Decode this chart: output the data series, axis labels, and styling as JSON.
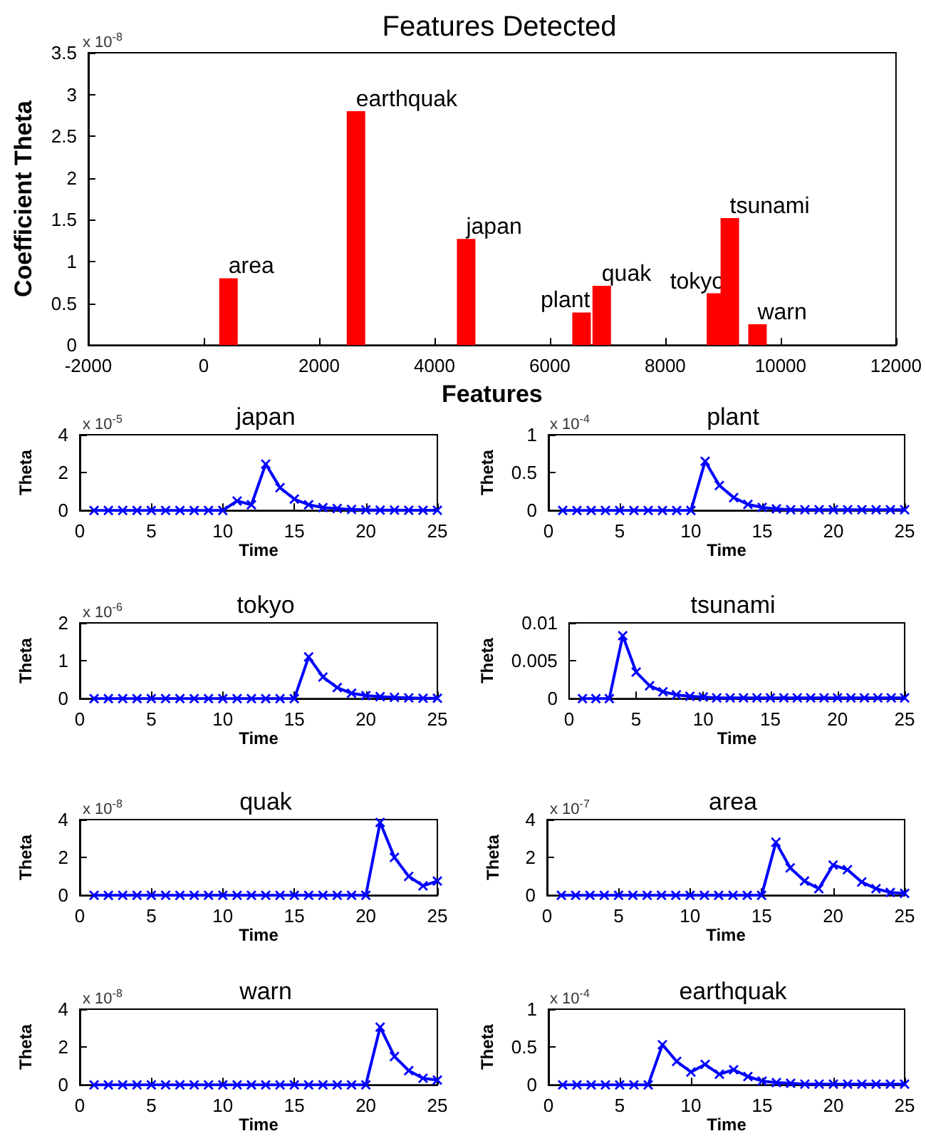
{
  "chart_data": [
    {
      "type": "bar",
      "title": "Features Detected",
      "xlabel": "Features",
      "ylabel": "Coefficient Theta",
      "x": [
        430,
        2640,
        4550,
        6550,
        6900,
        8880,
        9120,
        9600
      ],
      "values": [
        0.8,
        2.8,
        1.27,
        0.39,
        0.71,
        0.62,
        1.52,
        0.25
      ],
      "color": "#ff0000",
      "xlim": [
        -2000,
        12000
      ],
      "xticks": [
        -2000,
        0,
        2000,
        4000,
        6000,
        8000,
        10000,
        12000
      ],
      "ylim": [
        0,
        3.5
      ],
      "yticks": [
        0,
        0.5,
        1,
        1.5,
        2,
        2.5,
        3,
        3.5
      ],
      "annotations": [
        "x 10$^{-8}$",
        {
          "text": "area",
          "x": 430,
          "y": 0.8
        },
        {
          "text": "earthquak",
          "x": 2640,
          "y": 2.8
        },
        {
          "text": "japan",
          "x": 4550,
          "y": 1.27
        },
        {
          "text": "plant",
          "x": 6550,
          "y": 0.39
        },
        {
          "text": "quak",
          "x": 6900,
          "y": 0.71
        },
        {
          "text": "tokyo",
          "x": 8880,
          "y": 0.62
        },
        {
          "text": "tsunami",
          "x": 9120,
          "y": 1.52
        },
        {
          "text": "warn",
          "x": 9600,
          "y": 0.25
        }
      ]
    },
    {
      "type": "line",
      "title": "japan",
      "xlabel": "Time",
      "ylabel": "Theta",
      "marker": "cross",
      "color": "#0000ff",
      "x": [
        1,
        2,
        3,
        4,
        5,
        6,
        7,
        8,
        9,
        10,
        11,
        12,
        13,
        14,
        15,
        16,
        17,
        18,
        19,
        20,
        21,
        22,
        23,
        24,
        25
      ],
      "values": [
        0,
        0,
        0,
        0,
        0,
        0,
        0,
        0,
        0,
        0,
        0.5,
        0.3,
        2.45,
        1.2,
        0.6,
        0.3,
        0.15,
        0.1,
        0.05,
        0.03,
        0.02,
        0.02,
        0.01,
        0.01,
        0.01
      ],
      "xlim": [
        0,
        25
      ],
      "xticks": [
        0,
        5,
        10,
        15,
        20,
        25
      ],
      "ylim": [
        0,
        4
      ],
      "yticks": [
        0,
        2,
        4
      ],
      "annotations": [
        "x 10$^{-5}$"
      ]
    },
    {
      "type": "line",
      "title": "plant",
      "xlabel": "Time",
      "ylabel": "Theta",
      "marker": "cross",
      "color": "#0000ff",
      "x": [
        1,
        2,
        3,
        4,
        5,
        6,
        7,
        8,
        9,
        10,
        11,
        12,
        13,
        14,
        15,
        16,
        17,
        18,
        19,
        20,
        21,
        22,
        23,
        24,
        25
      ],
      "values": [
        0,
        0,
        0,
        0,
        0,
        0,
        0,
        0,
        0,
        0,
        0.65,
        0.33,
        0.17,
        0.08,
        0.04,
        0.02,
        0.01,
        0.01,
        0.01,
        0.01,
        0.01,
        0.01,
        0.01,
        0.01,
        0.01
      ],
      "xlim": [
        0,
        25
      ],
      "xticks": [
        0,
        5,
        10,
        15,
        20,
        25
      ],
      "ylim": [
        0,
        1
      ],
      "yticks": [
        0,
        0.5,
        1
      ],
      "annotations": [
        "x 10$^{-4}$"
      ]
    },
    {
      "type": "line",
      "title": "tokyo",
      "xlabel": "Time",
      "ylabel": "Theta",
      "marker": "cross",
      "color": "#0000ff",
      "x": [
        1,
        2,
        3,
        4,
        5,
        6,
        7,
        8,
        9,
        10,
        11,
        12,
        13,
        14,
        15,
        16,
        17,
        18,
        19,
        20,
        21,
        22,
        23,
        24,
        25
      ],
      "values": [
        0,
        0,
        0,
        0,
        0,
        0,
        0,
        0,
        0,
        0,
        0,
        0,
        0,
        0,
        0,
        1.1,
        0.57,
        0.29,
        0.14,
        0.08,
        0.05,
        0.03,
        0.02,
        0.01,
        0.01
      ],
      "xlim": [
        0,
        25
      ],
      "xticks": [
        0,
        5,
        10,
        15,
        20,
        25
      ],
      "ylim": [
        0,
        2
      ],
      "yticks": [
        0,
        1,
        2
      ],
      "annotations": [
        "x 10$^{-6}$"
      ]
    },
    {
      "type": "line",
      "title": "tsunami",
      "xlabel": "Time",
      "ylabel": "Theta",
      "marker": "cross",
      "color": "#0000ff",
      "x": [
        1,
        2,
        3,
        4,
        5,
        6,
        7,
        8,
        9,
        10,
        11,
        12,
        13,
        14,
        15,
        16,
        17,
        18,
        19,
        20,
        21,
        22,
        23,
        24,
        25
      ],
      "values": [
        0,
        0,
        0,
        0.0083,
        0.0035,
        0.0017,
        0.0009,
        0.0005,
        0.0003,
        0.0002,
        0.0001,
        0.0001,
        0.0001,
        0.0001,
        0.0001,
        0.0001,
        0.0001,
        0.0001,
        0.0001,
        0.0001,
        0.0001,
        0.0001,
        0.0001,
        0.0001,
        0.0001
      ],
      "xlim": [
        0,
        25
      ],
      "xticks": [
        0,
        5,
        10,
        15,
        20,
        25
      ],
      "ylim": [
        0,
        0.01
      ],
      "yticks": [
        0,
        0.005,
        0.01
      ]
    },
    {
      "type": "line",
      "title": "quak",
      "xlabel": "Time",
      "ylabel": "Theta",
      "marker": "cross",
      "color": "#0000ff",
      "x": [
        1,
        2,
        3,
        4,
        5,
        6,
        7,
        8,
        9,
        10,
        11,
        12,
        13,
        14,
        15,
        16,
        17,
        18,
        19,
        20,
        21,
        22,
        23,
        24,
        25
      ],
      "values": [
        0,
        0,
        0,
        0,
        0,
        0,
        0,
        0,
        0,
        0,
        0,
        0,
        0,
        0,
        0,
        0,
        0,
        0,
        0,
        0,
        3.85,
        2.0,
        1.0,
        0.5,
        0.75
      ],
      "xlim": [
        0,
        25
      ],
      "xticks": [
        0,
        5,
        10,
        15,
        20,
        25
      ],
      "ylim": [
        0,
        4
      ],
      "yticks": [
        0,
        2,
        4
      ],
      "annotations": [
        "x 10$^{-8}$"
      ]
    },
    {
      "type": "line",
      "title": "area",
      "xlabel": "Time",
      "ylabel": "Theta",
      "marker": "cross",
      "color": "#0000ff",
      "x": [
        1,
        2,
        3,
        4,
        5,
        6,
        7,
        8,
        9,
        10,
        11,
        12,
        13,
        14,
        15,
        16,
        17,
        18,
        19,
        20,
        21,
        22,
        23,
        24,
        25
      ],
      "values": [
        0,
        0,
        0,
        0,
        0,
        0,
        0,
        0,
        0,
        0,
        0,
        0,
        0,
        0,
        0,
        2.8,
        1.45,
        0.75,
        0.35,
        1.6,
        1.35,
        0.7,
        0.35,
        0.15,
        0.1
      ],
      "xlim": [
        0,
        25
      ],
      "xticks": [
        0,
        5,
        10,
        15,
        20,
        25
      ],
      "ylim": [
        0,
        4
      ],
      "yticks": [
        0,
        2,
        4
      ],
      "annotations": [
        "x 10$^{-7}$"
      ]
    },
    {
      "type": "line",
      "title": "warn",
      "xlabel": "Time",
      "ylabel": "Theta",
      "marker": "cross",
      "color": "#0000ff",
      "x": [
        1,
        2,
        3,
        4,
        5,
        6,
        7,
        8,
        9,
        10,
        11,
        12,
        13,
        14,
        15,
        16,
        17,
        18,
        19,
        20,
        21,
        22,
        23,
        24,
        25
      ],
      "values": [
        0,
        0,
        0,
        0,
        0,
        0,
        0,
        0,
        0,
        0,
        0,
        0,
        0,
        0,
        0,
        0,
        0,
        0,
        0,
        0,
        3.05,
        1.5,
        0.75,
        0.35,
        0.25
      ],
      "xlim": [
        0,
        25
      ],
      "xticks": [
        0,
        5,
        10,
        15,
        20,
        25
      ],
      "ylim": [
        0,
        4
      ],
      "yticks": [
        0,
        2,
        4
      ],
      "annotations": [
        "x 10$^{-8}$"
      ]
    },
    {
      "type": "line",
      "title": "earthquak",
      "xlabel": "Time",
      "ylabel": "Theta",
      "marker": "cross",
      "color": "#0000ff",
      "x": [
        1,
        2,
        3,
        4,
        5,
        6,
        7,
        8,
        9,
        10,
        11,
        12,
        13,
        14,
        15,
        16,
        17,
        18,
        19,
        20,
        21,
        22,
        23,
        24,
        25
      ],
      "values": [
        0,
        0,
        0,
        0,
        0,
        0,
        0,
        0.53,
        0.31,
        0.17,
        0.27,
        0.14,
        0.2,
        0.11,
        0.05,
        0.03,
        0.02,
        0.01,
        0.01,
        0.01,
        0.01,
        0.01,
        0.01,
        0.01,
        0.01
      ],
      "xlim": [
        0,
        25
      ],
      "xticks": [
        0,
        5,
        10,
        15,
        20,
        25
      ],
      "ylim": [
        0,
        1
      ],
      "yticks": [
        0,
        0.5,
        1
      ],
      "annotations": [
        "x 10$^{-4}$"
      ]
    }
  ]
}
